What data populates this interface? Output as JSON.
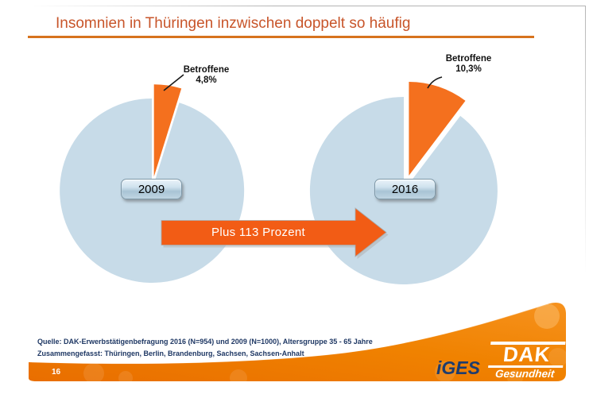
{
  "slide": {
    "title": "Insomnien in Thüringen inzwischen doppelt so häufig",
    "page_number": "16",
    "footer_source_line1": "Quelle: DAK-Erwerbstätigenbefragung 2016 (N=954) und 2009 (N=1000), Altersgruppe 35 - 65 Jahre",
    "footer_source_line2": "Zusammengefasst: Thüringen, Berlin, Brandenburg, Sachsen, Sachsen-Anhalt"
  },
  "pies": {
    "left": {
      "year": "2009",
      "callout_label": "Betroffene",
      "callout_value": "4,8%"
    },
    "right": {
      "year": "2016",
      "callout_label": "Betroffene",
      "callout_value": "10,3%"
    }
  },
  "arrow": {
    "label": "Plus 113 Prozent"
  },
  "logos": {
    "iges_text": "iGES",
    "dak_text": "DAK",
    "dak_subtext": "Gesundheit"
  },
  "colors": {
    "title_red": "#c8552a",
    "underline_orange": "#d7731e",
    "pie_blue": "#c7dbe8",
    "slice_orange": "#f4701e",
    "arrow_orange": "#f25c15",
    "swoosh_orange_dark": "#e96e00",
    "swoosh_orange_light": "#f6921e",
    "footer_navy": "#1f3864",
    "iges_navy": "#1d3c6e"
  },
  "chart_data": [
    {
      "type": "pie",
      "title": "2009",
      "labels": [
        "Betroffene",
        "Rest (unbeschriftet)"
      ],
      "values": [
        4.8,
        95.2
      ],
      "unit": "%",
      "annotation": "Betroffene 4,8%",
      "exploded_slice": "Betroffene",
      "slice_colors": [
        "#f4701e",
        "#c7dbe8"
      ],
      "legend": "none"
    },
    {
      "type": "pie",
      "title": "2016",
      "labels": [
        "Betroffene",
        "Rest (unbeschriftet)"
      ],
      "values": [
        10.3,
        89.7
      ],
      "unit": "%",
      "annotation": "Betroffene 10,3%",
      "exploded_slice": "Betroffene",
      "slice_colors": [
        "#f4701e",
        "#c7dbe8"
      ],
      "legend": "none"
    }
  ],
  "comparison": {
    "change_label": "Plus 113 Prozent",
    "change_percent": 113
  }
}
